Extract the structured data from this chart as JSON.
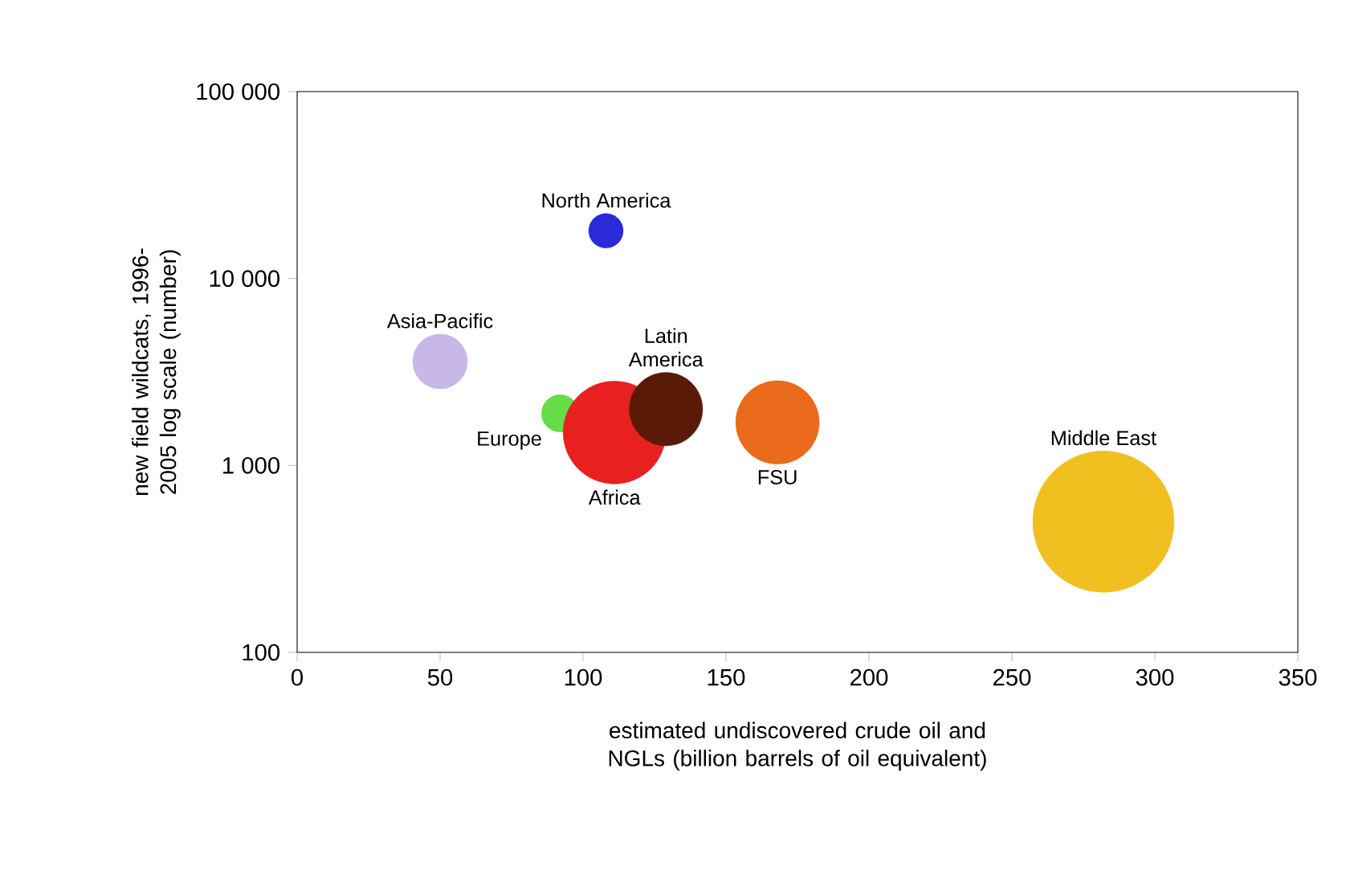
{
  "chart_data": {
    "type": "bubble",
    "xlabel": "estimated undiscovered crude oil and NGLs (billion barrels of oil equivalent)",
    "ylabel": "new field wildcats, 1996-2005 log scale (number)",
    "log": "y",
    "xlim": [
      0,
      350
    ],
    "xticks": [
      0,
      50,
      100,
      150,
      200,
      250,
      300,
      350
    ],
    "ylim": [
      100,
      100000
    ],
    "yticks": [
      {
        "value": 100,
        "label": "100"
      },
      {
        "value": 1000,
        "label": "1 000"
      },
      {
        "value": 10000,
        "label": "10 000"
      },
      {
        "value": 100000,
        "label": "100 000"
      }
    ],
    "series": [
      {
        "name": "North America",
        "color": "#2a2ad8",
        "x": [
          108
        ],
        "values": [
          18000
        ],
        "sizes": [
          0.06
        ]
      },
      {
        "name": "Asia-Pacific",
        "color": "#c8b8e8",
        "x": [
          50
        ],
        "values": [
          3600
        ],
        "sizes": [
          0.15
        ]
      },
      {
        "name": "Europe",
        "color": "#66dd44",
        "x": [
          92
        ],
        "values": [
          1900
        ],
        "sizes": [
          0.07
        ]
      },
      {
        "name": "Africa",
        "color": "#e82020",
        "x": [
          111
        ],
        "values": [
          1500
        ],
        "sizes": [
          0.53
        ]
      },
      {
        "name": "Latin America",
        "color": "#5a1a08",
        "x": [
          129
        ],
        "values": [
          2000
        ],
        "sizes": [
          0.27
        ]
      },
      {
        "name": "FSU",
        "color": "#e86a1a",
        "x": [
          168
        ],
        "values": [
          1700
        ],
        "sizes": [
          0.35
        ]
      },
      {
        "name": "Middle East",
        "color": "#f0c020",
        "x": [
          282
        ],
        "values": [
          500
        ],
        "sizes": [
          1
        ]
      }
    ]
  }
}
